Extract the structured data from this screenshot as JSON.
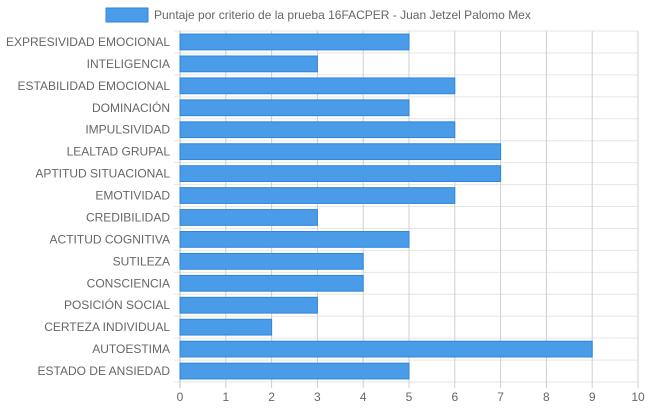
{
  "chart_data": {
    "type": "bar",
    "orientation": "horizontal",
    "categories": [
      "EXPRESIVIDAD EMOCIONAL",
      "INTELIGENCIA",
      "ESTABILIDAD EMOCIONAL",
      "DOMINACIÓN",
      "IMPULSIVIDAD",
      "LEALTAD GRUPAL",
      "APTITUD SITUACIONAL",
      "EMOTIVIDAD",
      "CREDIBILIDAD",
      "ACTITUD COGNITIVA",
      "SUTILEZA",
      "CONSCIENCIA",
      "POSICIÓN SOCIAL",
      "CERTEZA INDIVIDUAL",
      "AUTOESTIMA",
      "ESTADO DE ANSIEDAD"
    ],
    "series": [
      {
        "name": "Puntaje por criterio de la prueba 16FACPER - Juan Jetzel Palomo Mex",
        "values": [
          5,
          3,
          6,
          5,
          6,
          7,
          7,
          6,
          3,
          5,
          4,
          4,
          3,
          2,
          9,
          5
        ],
        "color": "#4a9be8",
        "border_color": "#2e86de"
      }
    ],
    "xlim": [
      0,
      10
    ],
    "x_ticks": [
      "0",
      "1",
      "2",
      "3",
      "4",
      "5",
      "6",
      "7",
      "8",
      "9",
      "10"
    ],
    "legend_position": "top",
    "grid": true
  }
}
